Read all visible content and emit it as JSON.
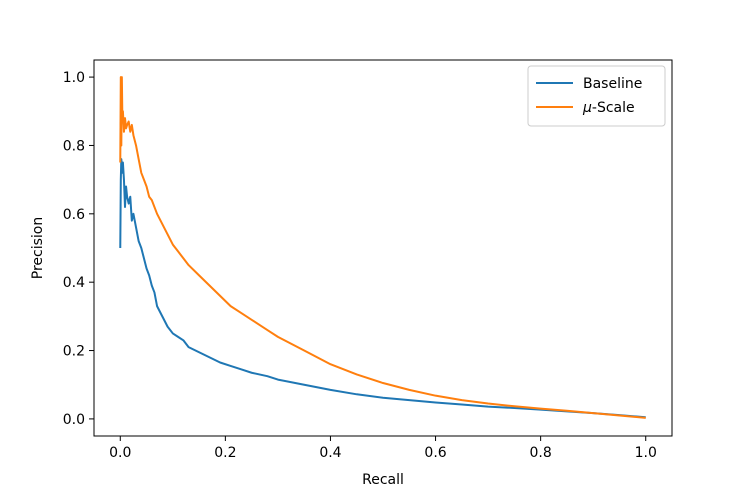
{
  "chart_data": {
    "type": "line",
    "title": "",
    "xlabel": "Recall",
    "ylabel": "Precision",
    "xlim": [
      -0.05,
      1.05
    ],
    "ylim": [
      -0.05,
      1.05
    ],
    "xticks": [
      0.0,
      0.2,
      0.4,
      0.6,
      0.8,
      1.0
    ],
    "yticks": [
      0.0,
      0.2,
      0.4,
      0.6,
      0.8,
      1.0
    ],
    "xtick_labels": [
      "0.0",
      "0.2",
      "0.4",
      "0.6",
      "0.8",
      "1.0"
    ],
    "ytick_labels": [
      "0.0",
      "0.2",
      "0.4",
      "0.6",
      "0.8",
      "1.0"
    ],
    "grid": false,
    "legend_position": "top-right",
    "legend_entries": [
      {
        "prefix": "",
        "italic": "",
        "text": "Baseline"
      },
      {
        "prefix": "",
        "italic": "μ",
        "text": "-Scale"
      }
    ],
    "series": [
      {
        "name": "Baseline",
        "color": "#1f77b4",
        "x": [
          0.0,
          0.001,
          0.002,
          0.003,
          0.004,
          0.005,
          0.007,
          0.009,
          0.011,
          0.013,
          0.016,
          0.019,
          0.022,
          0.025,
          0.03,
          0.035,
          0.04,
          0.045,
          0.05,
          0.055,
          0.06,
          0.065,
          0.07,
          0.08,
          0.09,
          0.1,
          0.11,
          0.12,
          0.13,
          0.15,
          0.17,
          0.19,
          0.21,
          0.23,
          0.25,
          0.28,
          0.3,
          0.35,
          0.4,
          0.45,
          0.5,
          0.55,
          0.6,
          0.65,
          0.7,
          0.75,
          0.8,
          0.85,
          0.9,
          0.95,
          1.0
        ],
        "y": [
          0.5,
          0.7,
          0.76,
          0.74,
          0.72,
          0.75,
          0.7,
          0.62,
          0.68,
          0.65,
          0.63,
          0.65,
          0.58,
          0.6,
          0.56,
          0.52,
          0.5,
          0.47,
          0.44,
          0.42,
          0.39,
          0.37,
          0.33,
          0.3,
          0.27,
          0.25,
          0.24,
          0.23,
          0.21,
          0.195,
          0.18,
          0.165,
          0.155,
          0.145,
          0.135,
          0.125,
          0.115,
          0.1,
          0.085,
          0.072,
          0.062,
          0.055,
          0.048,
          0.042,
          0.036,
          0.032,
          0.027,
          0.022,
          0.017,
          0.011,
          0.005
        ]
      },
      {
        "name": "μ-Scale",
        "color": "#ff7f0e",
        "x": [
          0.0,
          0.001,
          0.002,
          0.003,
          0.004,
          0.005,
          0.007,
          0.009,
          0.011,
          0.013,
          0.016,
          0.019,
          0.022,
          0.025,
          0.03,
          0.035,
          0.04,
          0.045,
          0.05,
          0.055,
          0.06,
          0.07,
          0.08,
          0.09,
          0.1,
          0.11,
          0.12,
          0.13,
          0.15,
          0.17,
          0.19,
          0.21,
          0.23,
          0.25,
          0.28,
          0.3,
          0.35,
          0.4,
          0.45,
          0.5,
          0.55,
          0.6,
          0.65,
          0.7,
          0.75,
          0.8,
          0.85,
          0.9,
          0.95,
          1.0
        ],
        "y": [
          0.75,
          1.0,
          0.8,
          1.0,
          0.88,
          0.9,
          0.84,
          0.88,
          0.85,
          0.86,
          0.87,
          0.84,
          0.86,
          0.83,
          0.8,
          0.76,
          0.72,
          0.7,
          0.68,
          0.65,
          0.64,
          0.6,
          0.57,
          0.54,
          0.51,
          0.49,
          0.47,
          0.45,
          0.42,
          0.39,
          0.36,
          0.33,
          0.31,
          0.29,
          0.26,
          0.24,
          0.2,
          0.16,
          0.13,
          0.105,
          0.085,
          0.068,
          0.055,
          0.045,
          0.037,
          0.03,
          0.024,
          0.017,
          0.01,
          0.003
        ]
      }
    ]
  }
}
